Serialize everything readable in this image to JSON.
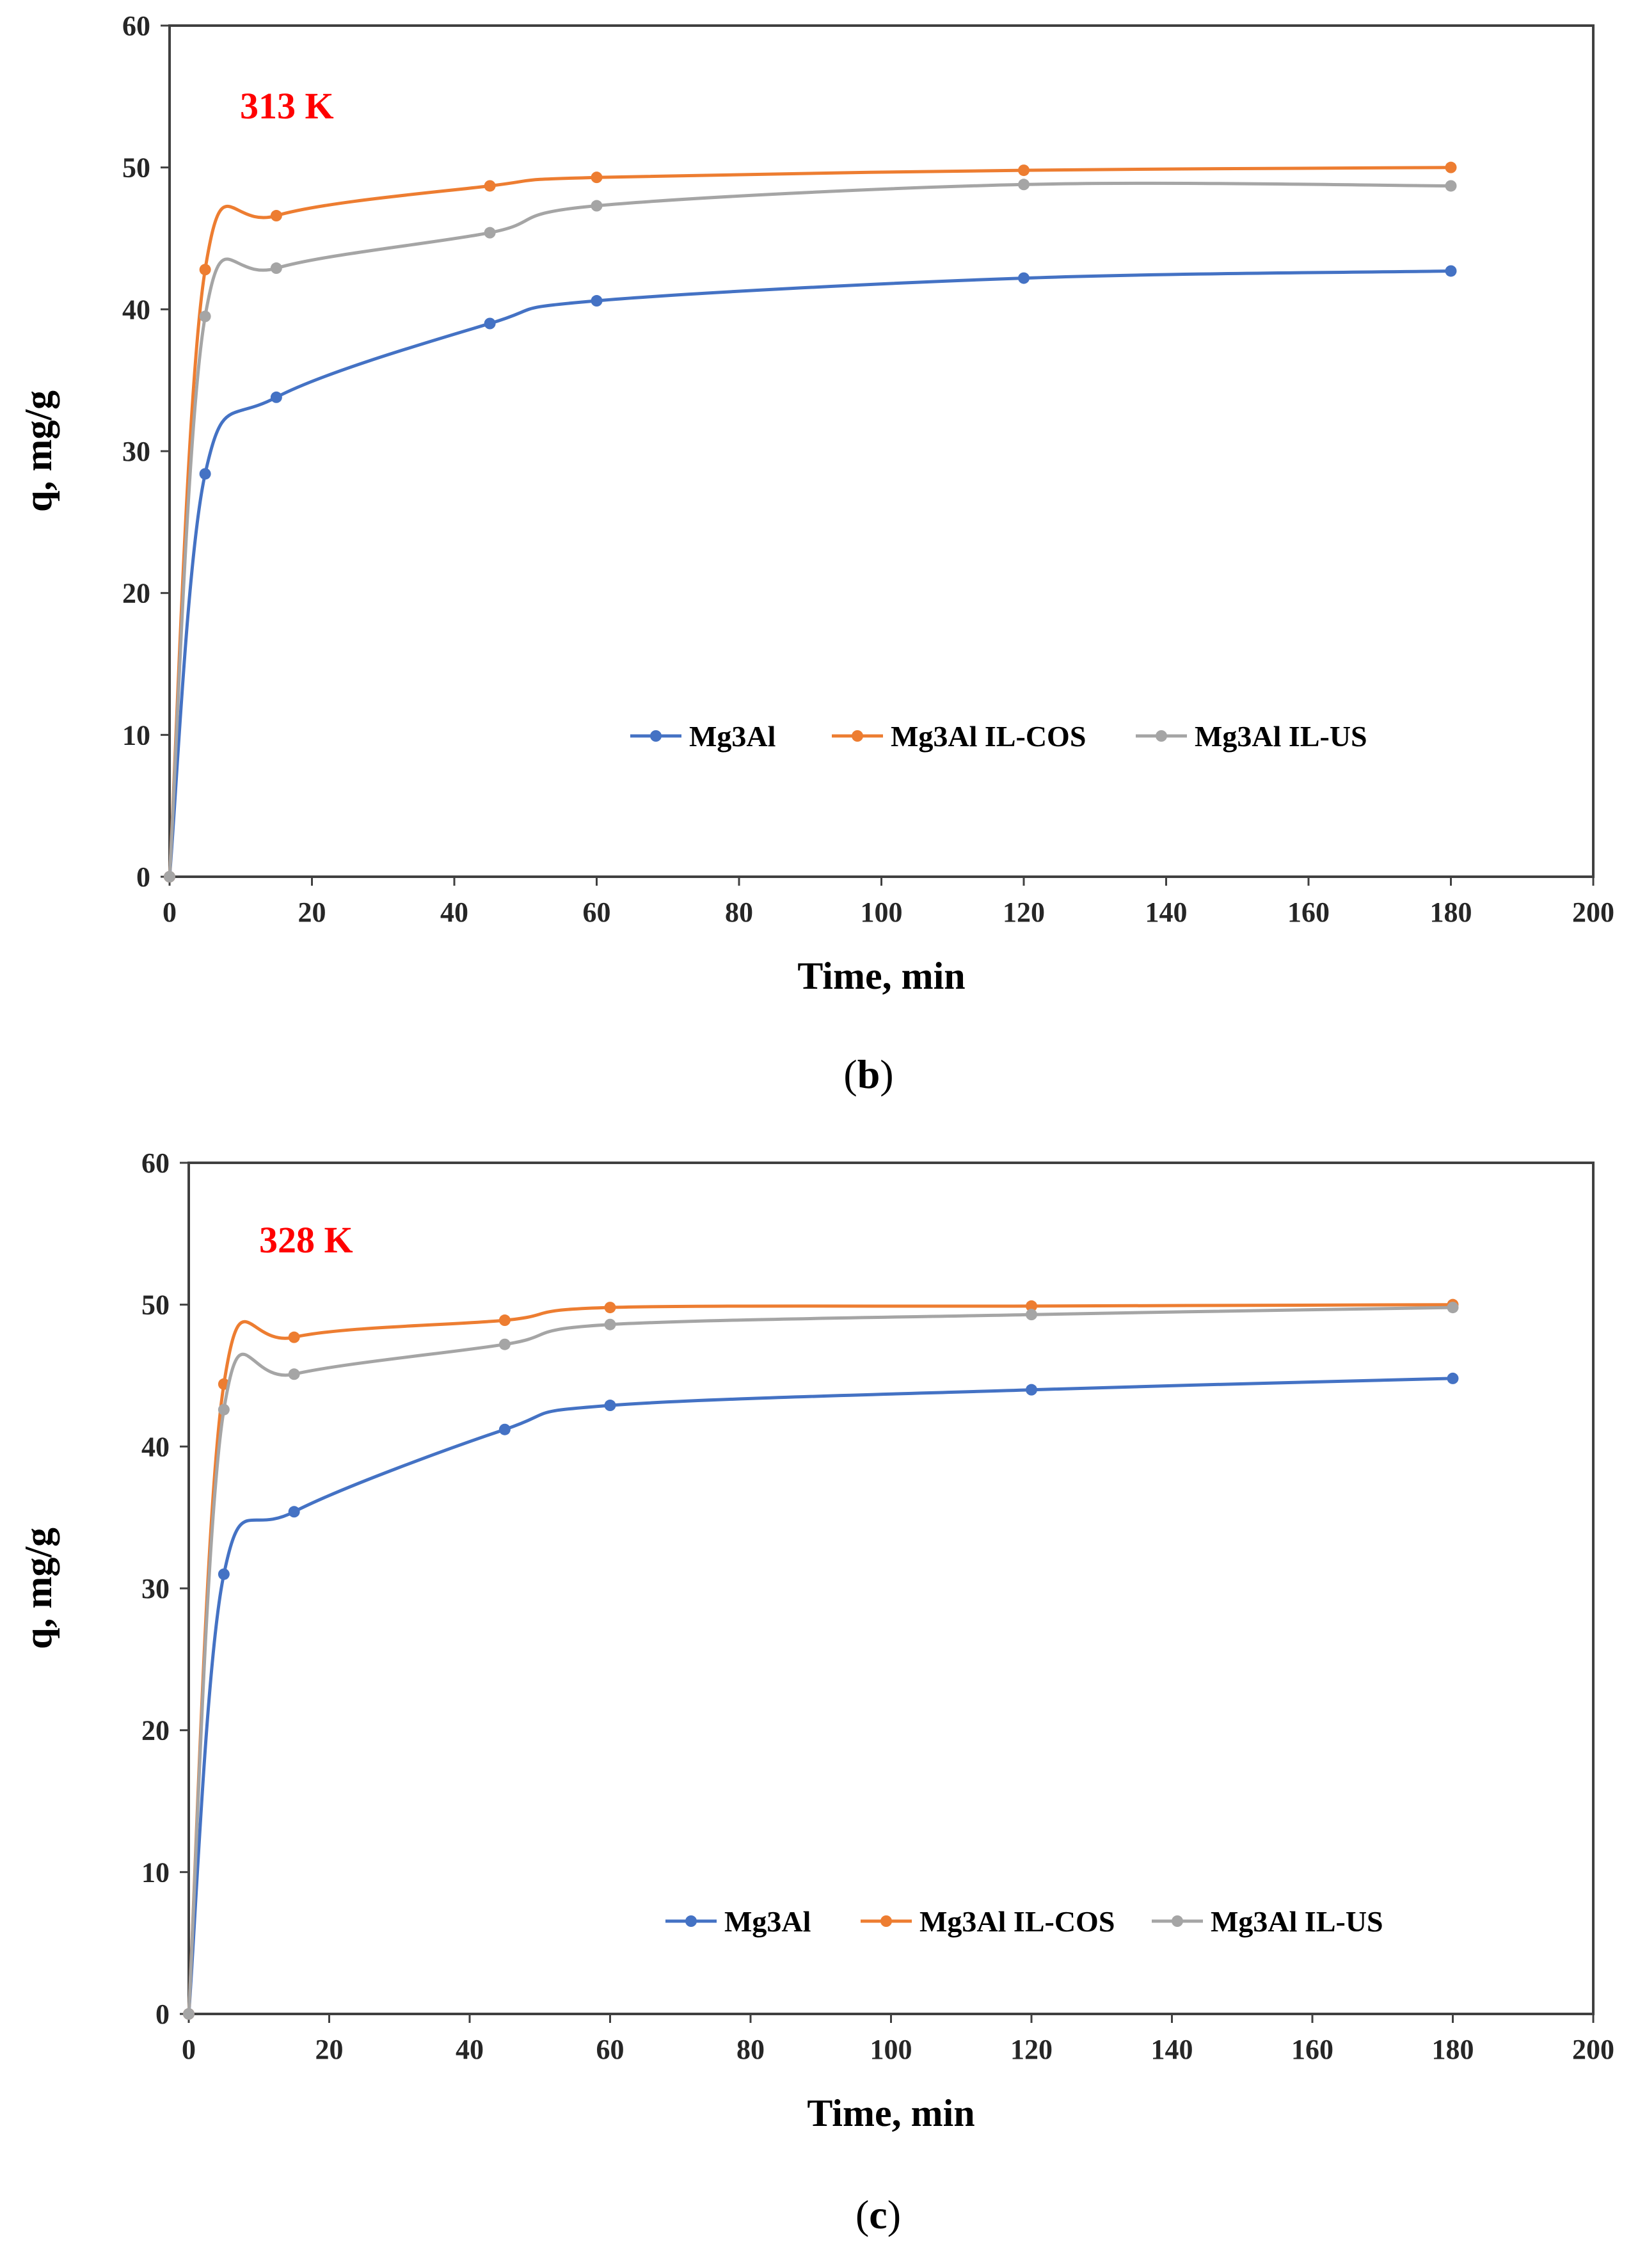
{
  "chart_data": [
    {
      "type": "line",
      "panel": "b",
      "temperature_label": "313 K",
      "caption_open": "(",
      "caption_letter": "b",
      "caption_close": ")",
      "xlabel": "Time, min",
      "ylabel": "q, mg/g",
      "xlim": [
        0,
        200
      ],
      "ylim": [
        0,
        60
      ],
      "x_ticks": [
        0,
        20,
        40,
        60,
        80,
        100,
        120,
        140,
        160,
        180,
        200
      ],
      "y_ticks": [
        0,
        10,
        20,
        30,
        40,
        50,
        60
      ],
      "x": [
        0,
        5,
        15,
        45,
        60,
        120,
        180
      ],
      "legend_position": "bottom-right",
      "series": [
        {
          "name": "Mg3Al",
          "color": "#4472C4",
          "values": [
            0,
            28.4,
            33.8,
            39.0,
            40.6,
            42.2,
            42.7
          ]
        },
        {
          "name": "Mg3Al IL-COS",
          "color": "#ED7D31",
          "values": [
            0,
            42.8,
            46.6,
            48.7,
            49.3,
            49.8,
            50.0
          ]
        },
        {
          "name": "Mg3Al IL-US",
          "color": "#A5A5A5",
          "values": [
            0,
            39.5,
            42.9,
            45.4,
            47.3,
            48.8,
            48.7
          ]
        }
      ]
    },
    {
      "type": "line",
      "panel": "c",
      "temperature_label": "328 K",
      "caption_open": "(",
      "caption_letter": "c",
      "caption_close": ")",
      "xlabel": "Time, min",
      "ylabel": "q, mg/g",
      "xlim": [
        0,
        200
      ],
      "ylim": [
        0,
        60
      ],
      "x_ticks": [
        0,
        20,
        40,
        60,
        80,
        100,
        120,
        140,
        160,
        180,
        200
      ],
      "y_ticks": [
        0,
        10,
        20,
        30,
        40,
        50,
        60
      ],
      "x": [
        0,
        5,
        15,
        45,
        60,
        120,
        180
      ],
      "legend_position": "bottom-right",
      "series": [
        {
          "name": "Mg3Al",
          "color": "#4472C4",
          "values": [
            0,
            31.0,
            35.4,
            41.2,
            42.9,
            44.0,
            44.8
          ]
        },
        {
          "name": "Mg3Al IL-COS",
          "color": "#ED7D31",
          "values": [
            0,
            44.4,
            47.7,
            48.9,
            49.8,
            49.9,
            50.0
          ]
        },
        {
          "name": "Mg3Al IL-US",
          "color": "#A5A5A5",
          "values": [
            0,
            42.6,
            45.1,
            47.2,
            48.6,
            49.3,
            49.8
          ]
        }
      ]
    }
  ],
  "colors": {
    "temperature_label": "#FF0000",
    "axis": "#404040"
  }
}
